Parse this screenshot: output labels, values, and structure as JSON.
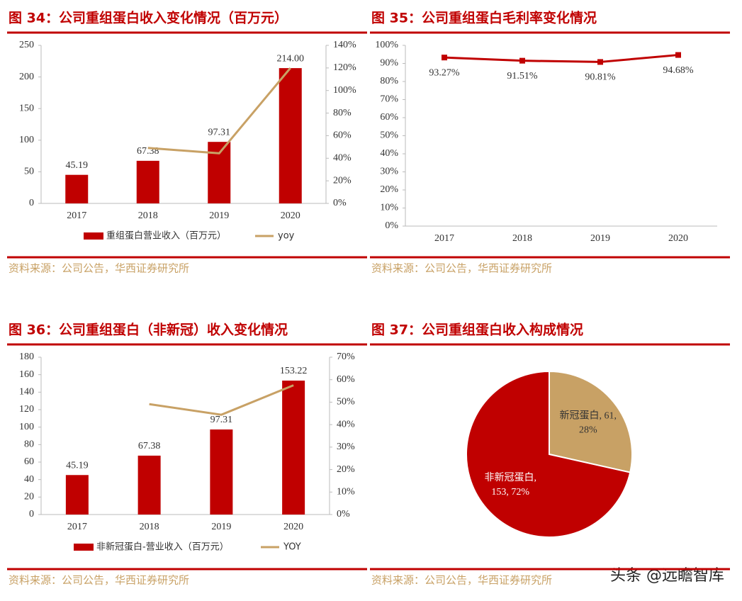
{
  "chart_data": [
    {
      "type": "bar_line",
      "title": "图 34：公司重组蛋白收入变化情况（百万元）",
      "categories": [
        "2017",
        "2018",
        "2019",
        "2020"
      ],
      "series": [
        {
          "name": "重组蛋白营业收入（百万元）",
          "type": "bar",
          "color": "#c00000",
          "values": [
            45.19,
            67.38,
            97.31,
            214.0
          ],
          "value_labels": [
            "45.19",
            "67.38",
            "97.31",
            "214.00"
          ]
        },
        {
          "name": "yoy",
          "type": "line",
          "axis": "y2",
          "color": "#c8a165",
          "values": [
            null,
            49.1,
            44.4,
            119.9
          ]
        }
      ],
      "ylim": [
        0,
        250
      ],
      "yticks": [
        0,
        50,
        100,
        150,
        200,
        250
      ],
      "y2lim": [
        0,
        140
      ],
      "y2ticks": [
        {
          "value": 0,
          "label": "0%"
        },
        {
          "value": 20,
          "label": "20%"
        },
        {
          "value": 40,
          "label": "40%"
        },
        {
          "value": 60,
          "label": "60%"
        },
        {
          "value": 80,
          "label": "80%"
        },
        {
          "value": 100,
          "label": "100%"
        },
        {
          "value": 120,
          "label": "120%"
        },
        {
          "value": 140,
          "label": "140%"
        }
      ],
      "legend": "bottom",
      "source": "资料来源：公司公告，华西证券研究所"
    },
    {
      "type": "line",
      "title": "图 35：公司重组蛋白毛利率变化情况",
      "categories": [
        "2017",
        "2018",
        "2019",
        "2020"
      ],
      "series": [
        {
          "name": "毛利率",
          "type": "line",
          "color": "#c00000",
          "values": [
            93.27,
            91.51,
            90.81,
            94.68
          ],
          "value_labels": [
            "93.27%",
            "91.51%",
            "90.81%",
            "94.68%"
          ]
        }
      ],
      "ylim": [
        0,
        100
      ],
      "yticks": [
        {
          "value": 0,
          "label": "0%"
        },
        {
          "value": 10,
          "label": "10%"
        },
        {
          "value": 20,
          "label": "20%"
        },
        {
          "value": 30,
          "label": "30%"
        },
        {
          "value": 40,
          "label": "40%"
        },
        {
          "value": 50,
          "label": "50%"
        },
        {
          "value": 60,
          "label": "60%"
        },
        {
          "value": 70,
          "label": "70%"
        },
        {
          "value": 80,
          "label": "80%"
        },
        {
          "value": 90,
          "label": "90%"
        },
        {
          "value": 100,
          "label": "100%"
        }
      ],
      "source": "资料来源：公司公告，华西证券研究所"
    },
    {
      "type": "bar_line",
      "title": "图 36：公司重组蛋白（非新冠）收入变化情况",
      "categories": [
        "2017",
        "2018",
        "2019",
        "2020"
      ],
      "series": [
        {
          "name": "非新冠蛋白-营业收入（百万元）",
          "type": "bar",
          "color": "#c00000",
          "values": [
            45.19,
            67.38,
            97.31,
            153.22
          ]
        },
        {
          "name": "YOY",
          "type": "line",
          "axis": "y2",
          "color": "#c8a165",
          "values": [
            null,
            49.1,
            44.4,
            57.5
          ]
        }
      ],
      "ylim": [
        0,
        180
      ],
      "yticks": [
        0,
        20,
        40,
        60,
        80,
        100,
        120,
        140,
        160,
        180
      ],
      "y2lim": [
        0,
        70
      ],
      "y2ticks": [
        {
          "value": 0,
          "label": "0%"
        },
        {
          "value": 10,
          "label": "10%"
        },
        {
          "value": 20,
          "label": "20%"
        },
        {
          "value": 30,
          "label": "30%"
        },
        {
          "value": 40,
          "label": "40%"
        },
        {
          "value": 50,
          "label": "50%"
        },
        {
          "value": 60,
          "label": "60%"
        },
        {
          "value": 70,
          "label": "70%"
        }
      ],
      "legend": "bottom",
      "source": "资料来源：公司公告，华西证券研究所"
    },
    {
      "type": "pie",
      "title": "图 37：公司重组蛋白收入构成情况",
      "categories": [
        "新冠蛋白",
        "非新冠蛋白"
      ],
      "values": [
        61,
        153
      ],
      "colors": [
        "#c8a165",
        "#c00000"
      ],
      "data_labels": [
        [
          "新冠蛋白, 61,",
          "28%"
        ],
        [
          "非新冠蛋白,",
          "153, 72%"
        ]
      ],
      "source": "资料来源：公司公告，华西证券研究所"
    }
  ],
  "watermark": "头条 @远瞻智库"
}
